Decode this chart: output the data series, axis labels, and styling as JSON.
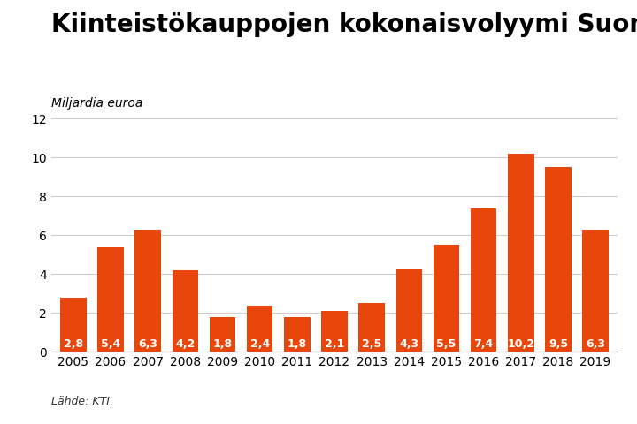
{
  "title": "Kiinteistökauppojen kokonaisvolyymi Suomessa",
  "ylabel": "Miljardia euroa",
  "source": "Lähde: KTI.",
  "years": [
    2005,
    2006,
    2007,
    2008,
    2009,
    2010,
    2011,
    2012,
    2013,
    2014,
    2015,
    2016,
    2017,
    2018,
    2019
  ],
  "values": [
    2.8,
    5.4,
    6.3,
    4.2,
    1.8,
    2.4,
    1.8,
    2.1,
    2.5,
    4.3,
    5.5,
    7.4,
    10.2,
    9.5,
    6.3
  ],
  "bar_color": "#E8460A",
  "label_color": "#FFFFFF",
  "background_color": "#FFFFFF",
  "ylim": [
    0,
    12
  ],
  "yticks": [
    0,
    2,
    4,
    6,
    8,
    10,
    12
  ],
  "title_fontsize": 20,
  "ylabel_fontsize": 10,
  "label_fontsize": 9,
  "source_fontsize": 9,
  "tick_fontsize": 10,
  "grid_color": "#CCCCCC",
  "bottom_spine_color": "#888888"
}
